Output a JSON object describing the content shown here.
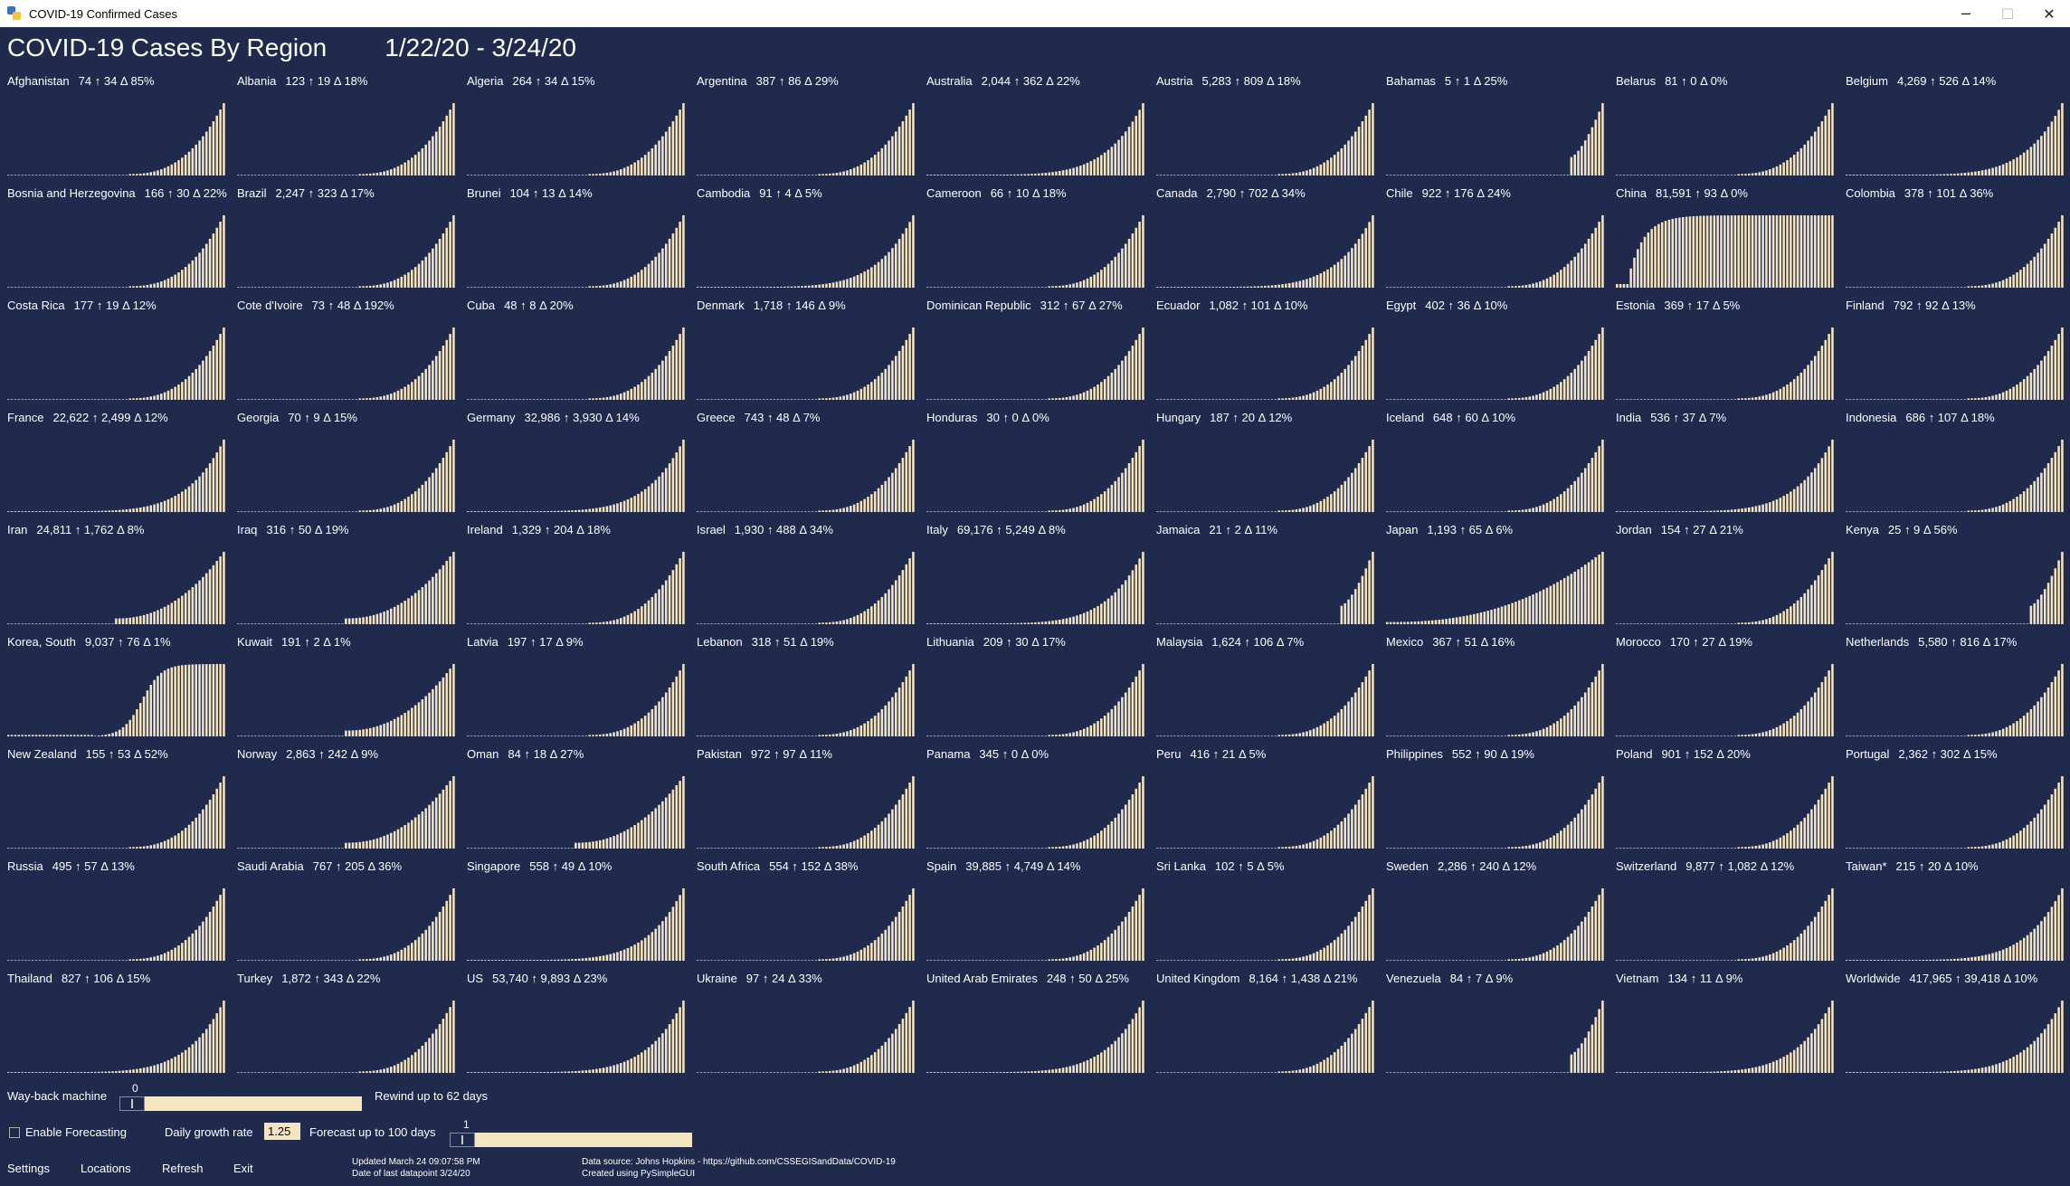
{
  "window": {
    "title": "COVID-19 Confirmed Cases",
    "minimize_glyph": "─",
    "maximize_glyph": "☐",
    "close_glyph": "✕"
  },
  "header": {
    "title": "COVID-19 Cases By Region",
    "date_range": "1/22/20 - 3/24/20"
  },
  "colors": {
    "background": "#1f2a4c",
    "bar": "#f4e4c0",
    "text": "#ffffff",
    "titlebar": "#ffffff"
  },
  "regions": [
    {
      "name": "Afghanistan",
      "stats": "74 ↑ 34 Δ 85%",
      "shape": "late"
    },
    {
      "name": "Albania",
      "stats": "123 ↑ 19 Δ 18%",
      "shape": "late"
    },
    {
      "name": "Algeria",
      "stats": "264 ↑ 34 Δ 15%",
      "shape": "late"
    },
    {
      "name": "Argentina",
      "stats": "387 ↑ 86 Δ 29%",
      "shape": "late"
    },
    {
      "name": "Australia",
      "stats": "2,044 ↑ 362 Δ 22%",
      "shape": "long"
    },
    {
      "name": "Austria",
      "stats": "5,283 ↑ 809 Δ 18%",
      "shape": "late"
    },
    {
      "name": "Bahamas",
      "stats": "5 ↑ 1 Δ 25%",
      "shape": "tiny"
    },
    {
      "name": "Belarus",
      "stats": "81 ↑ 0 Δ 0%",
      "shape": "late"
    },
    {
      "name": "Belgium",
      "stats": "4,269 ↑ 526 Δ 14%",
      "shape": "long"
    },
    {
      "name": "Bosnia and Herzegovina",
      "stats": "166 ↑ 30 Δ 22%",
      "shape": "late"
    },
    {
      "name": "Brazil",
      "stats": "2,247 ↑ 323 Δ 17%",
      "shape": "late"
    },
    {
      "name": "Brunei",
      "stats": "104 ↑ 13 Δ 14%",
      "shape": "late"
    },
    {
      "name": "Cambodia",
      "stats": "91 ↑ 4 Δ 5%",
      "shape": "long"
    },
    {
      "name": "Cameroon",
      "stats": "66 ↑ 10 Δ 18%",
      "shape": "late"
    },
    {
      "name": "Canada",
      "stats": "2,790 ↑ 702 Δ 34%",
      "shape": "long"
    },
    {
      "name": "Chile",
      "stats": "922 ↑ 176 Δ 24%",
      "shape": "late"
    },
    {
      "name": "China",
      "stats": "81,591 ↑ 93 Δ 0%",
      "shape": "china"
    },
    {
      "name": "Colombia",
      "stats": "378 ↑ 101 Δ 36%",
      "shape": "late"
    },
    {
      "name": "Costa Rica",
      "stats": "177 ↑ 19 Δ 12%",
      "shape": "late"
    },
    {
      "name": "Cote d'Ivoire",
      "stats": "73 ↑ 48 Δ 192%",
      "shape": "late"
    },
    {
      "name": "Cuba",
      "stats": "48 ↑ 8 Δ 20%",
      "shape": "late"
    },
    {
      "name": "Denmark",
      "stats": "1,718 ↑ 146 Δ 9%",
      "shape": "late"
    },
    {
      "name": "Dominican Republic",
      "stats": "312 ↑ 67 Δ 27%",
      "shape": "late"
    },
    {
      "name": "Ecuador",
      "stats": "1,082 ↑ 101 Δ 10%",
      "shape": "late"
    },
    {
      "name": "Egypt",
      "stats": "402 ↑ 36 Δ 10%",
      "shape": "late"
    },
    {
      "name": "Estonia",
      "stats": "369 ↑ 17 Δ 5%",
      "shape": "late"
    },
    {
      "name": "Finland",
      "stats": "792 ↑ 92 Δ 13%",
      "shape": "late"
    },
    {
      "name": "France",
      "stats": "22,622 ↑ 2,499 Δ 12%",
      "shape": "long"
    },
    {
      "name": "Georgia",
      "stats": "70 ↑ 9 Δ 15%",
      "shape": "late"
    },
    {
      "name": "Germany",
      "stats": "32,986 ↑ 3,930 Δ 14%",
      "shape": "long"
    },
    {
      "name": "Greece",
      "stats": "743 ↑ 48 Δ 7%",
      "shape": "late"
    },
    {
      "name": "Honduras",
      "stats": "30 ↑ 0 Δ 0%",
      "shape": "late"
    },
    {
      "name": "Hungary",
      "stats": "187 ↑ 20 Δ 12%",
      "shape": "late"
    },
    {
      "name": "Iceland",
      "stats": "648 ↑ 60 Δ 10%",
      "shape": "late"
    },
    {
      "name": "India",
      "stats": "536 ↑ 37 Δ 7%",
      "shape": "long"
    },
    {
      "name": "Indonesia",
      "stats": "686 ↑ 107 Δ 18%",
      "shape": "late"
    },
    {
      "name": "Iran",
      "stats": "24,811 ↑ 1,762 Δ 8%",
      "shape": "mid"
    },
    {
      "name": "Iraq",
      "stats": "316 ↑ 50 Δ 19%",
      "shape": "mid"
    },
    {
      "name": "Ireland",
      "stats": "1,329 ↑ 204 Δ 18%",
      "shape": "late"
    },
    {
      "name": "Israel",
      "stats": "1,930 ↑ 488 Δ 34%",
      "shape": "late"
    },
    {
      "name": "Italy",
      "stats": "69,176 ↑ 5,249 Δ 8%",
      "shape": "long"
    },
    {
      "name": "Jamaica",
      "stats": "21 ↑ 2 Δ 11%",
      "shape": "tiny"
    },
    {
      "name": "Japan",
      "stats": "1,193 ↑ 65 Δ 6%",
      "shape": "japan"
    },
    {
      "name": "Jordan",
      "stats": "154 ↑ 27 Δ 21%",
      "shape": "late"
    },
    {
      "name": "Kenya",
      "stats": "25 ↑ 9 Δ 56%",
      "shape": "tiny"
    },
    {
      "name": "Korea, South",
      "stats": "9,037 ↑ 76 Δ 1%",
      "shape": "korea"
    },
    {
      "name": "Kuwait",
      "stats": "191 ↑ 2 Δ 1%",
      "shape": "mid"
    },
    {
      "name": "Latvia",
      "stats": "197 ↑ 17 Δ 9%",
      "shape": "late"
    },
    {
      "name": "Lebanon",
      "stats": "318 ↑ 51 Δ 19%",
      "shape": "late"
    },
    {
      "name": "Lithuania",
      "stats": "209 ↑ 30 Δ 17%",
      "shape": "late"
    },
    {
      "name": "Malaysia",
      "stats": "1,624 ↑ 106 Δ 7%",
      "shape": "late"
    },
    {
      "name": "Mexico",
      "stats": "367 ↑ 51 Δ 16%",
      "shape": "late"
    },
    {
      "name": "Morocco",
      "stats": "170 ↑ 27 Δ 19%",
      "shape": "late"
    },
    {
      "name": "Netherlands",
      "stats": "5,580 ↑ 816 Δ 17%",
      "shape": "late"
    },
    {
      "name": "New Zealand",
      "stats": "155 ↑ 53 Δ 52%",
      "shape": "late"
    },
    {
      "name": "Norway",
      "stats": "2,863 ↑ 242 Δ 9%",
      "shape": "mid"
    },
    {
      "name": "Oman",
      "stats": "84 ↑ 18 Δ 27%",
      "shape": "mid"
    },
    {
      "name": "Pakistan",
      "stats": "972 ↑ 97 Δ 11%",
      "shape": "late"
    },
    {
      "name": "Panama",
      "stats": "345 ↑ 0 Δ 0%",
      "shape": "late"
    },
    {
      "name": "Peru",
      "stats": "416 ↑ 21 Δ 5%",
      "shape": "late"
    },
    {
      "name": "Philippines",
      "stats": "552 ↑ 90 Δ 19%",
      "shape": "late"
    },
    {
      "name": "Poland",
      "stats": "901 ↑ 152 Δ 20%",
      "shape": "late"
    },
    {
      "name": "Portugal",
      "stats": "2,362 ↑ 302 Δ 15%",
      "shape": "late"
    },
    {
      "name": "Russia",
      "stats": "495 ↑ 57 Δ 13%",
      "shape": "late"
    },
    {
      "name": "Saudi Arabia",
      "stats": "767 ↑ 205 Δ 36%",
      "shape": "late"
    },
    {
      "name": "Singapore",
      "stats": "558 ↑ 49 Δ 10%",
      "shape": "long"
    },
    {
      "name": "South Africa",
      "stats": "554 ↑ 152 Δ 38%",
      "shape": "late"
    },
    {
      "name": "Spain",
      "stats": "39,885 ↑ 4,749 Δ 14%",
      "shape": "late"
    },
    {
      "name": "Sri Lanka",
      "stats": "102 ↑ 5 Δ 5%",
      "shape": "late"
    },
    {
      "name": "Sweden",
      "stats": "2,286 ↑ 240 Δ 12%",
      "shape": "late"
    },
    {
      "name": "Switzerland",
      "stats": "9,877 ↑ 1,082 Δ 12%",
      "shape": "late"
    },
    {
      "name": "Taiwan*",
      "stats": "215 ↑ 20 Δ 10%",
      "shape": "long"
    },
    {
      "name": "Thailand",
      "stats": "827 ↑ 106 Δ 15%",
      "shape": "long"
    },
    {
      "name": "Turkey",
      "stats": "1,872 ↑ 343 Δ 22%",
      "shape": "late"
    },
    {
      "name": "US",
      "stats": "53,740 ↑ 9,893 Δ 23%",
      "shape": "long"
    },
    {
      "name": "Ukraine",
      "stats": "97 ↑ 24 Δ 33%",
      "shape": "late"
    },
    {
      "name": "United Arab Emirates",
      "stats": "248 ↑ 50 Δ 25%",
      "shape": "long"
    },
    {
      "name": "United Kingdom",
      "stats": "8,164 ↑ 1,438 Δ 21%",
      "shape": "late"
    },
    {
      "name": "Venezuela",
      "stats": "84 ↑ 7 Δ 9%",
      "shape": "tiny"
    },
    {
      "name": "Vietnam",
      "stats": "134 ↑ 11 Δ 9%",
      "shape": "long"
    },
    {
      "name": "Worldwide",
      "stats": "417,965 ↑ 39,418 Δ 10%",
      "shape": "long"
    }
  ],
  "controls": {
    "wayback_label": "Way-back machine",
    "wayback_value": "0",
    "wayback_hint": "Rewind up to 62 days",
    "enable_forecasting_label": "Enable Forecasting",
    "growth_rate_label": "Daily growth rate",
    "growth_rate_value": "1.25",
    "forecast_hint": "Forecast up to 100 days",
    "forecast_value": "1"
  },
  "footer": {
    "settings": "Settings",
    "locations": "Locations",
    "refresh": "Refresh",
    "exit": "Exit",
    "updated": "Updated March 24 09:07:58 PM",
    "last_datapoint": "Date of last datapoint 3/24/20",
    "source": "Data source: Johns Hopkins - https://github.com/CSSEGISandData/COVID-19",
    "created": "Created using PySimpleGUI"
  }
}
